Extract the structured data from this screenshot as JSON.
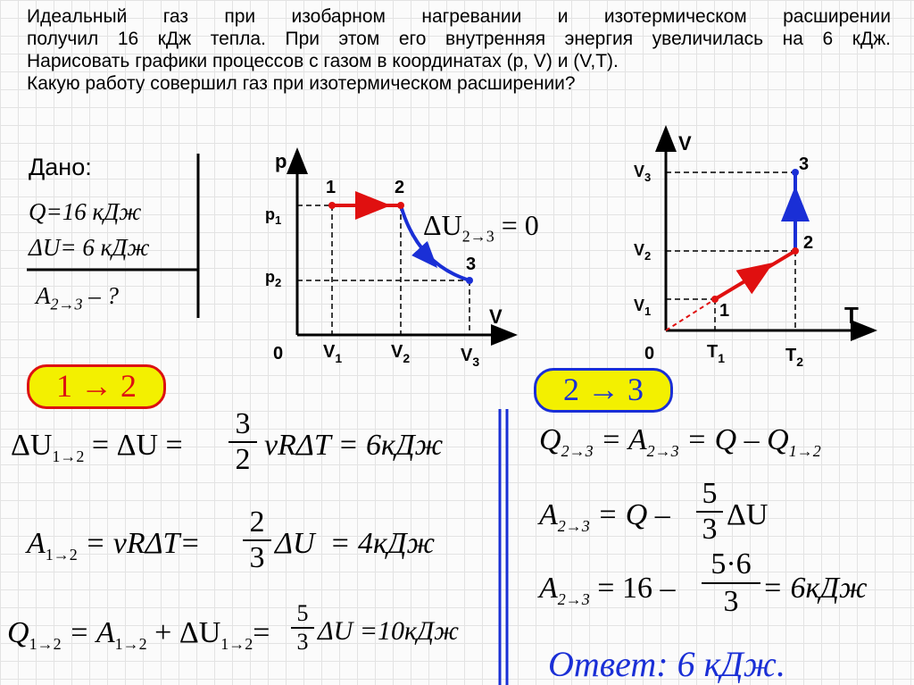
{
  "problem": {
    "lines": [
      "Идеальный газ при изобарном нагревании и изотермическом расширении",
      "получил 16 кДж тепла. При этом его внутренняя энергия увеличилась на 6 кДж.",
      "Нарисовать графики процессов с газом в координатах (p, V) и (V,T).",
      "Какую работу совершил газ при изотермическом расширении?"
    ]
  },
  "given": {
    "title": "Дано:",
    "q": "Q=16 кДж",
    "du": "ΔU= 6 кДж",
    "find": "A",
    "find_sub": "2→3",
    "find_q": " – ?"
  },
  "pv_graph": {
    "axis_p": "p",
    "axis_v": "V",
    "origin": "0",
    "p1": "p",
    "p1_sub": "1",
    "p2": "p",
    "p2_sub": "2",
    "v1": "V",
    "v1_sub": "1",
    "v2": "V",
    "v2_sub": "2",
    "v3": "V",
    "v3_sub": "3",
    "point1": "1",
    "point2": "2",
    "point3": "3",
    "du23_lhs": "ΔU",
    "du23_sub": "2→3",
    "du23_rhs": " = 0"
  },
  "vt_graph": {
    "axis_v": "V",
    "axis_t": "T",
    "origin": "0",
    "v1": "V",
    "v1_sub": "1",
    "v2": "V",
    "v2_sub": "2",
    "v3": "V",
    "v3_sub": "3",
    "t1": "T",
    "t1_sub": "1",
    "t2": "T",
    "t2_sub": "2",
    "point1": "1",
    "point2": "2",
    "point3": "3"
  },
  "colors": {
    "red": "#e01010",
    "blue": "#1a2fd6",
    "pill_bg": "#f3f000"
  },
  "step12": {
    "label": "1 → 2",
    "eq1_a": "ΔU",
    "eq1_a_sub": "1→2",
    "eq1_b": " = ΔU = ",
    "eq1_num": "3",
    "eq1_den": "2",
    "eq1_c": "νRΔT = 6кДж",
    "eq2_a": "A",
    "eq2_a_sub": "1→2",
    "eq2_b": " = νRΔT= ",
    "eq2_num": "2",
    "eq2_den": "3",
    "eq2_c": "ΔU  = 4кДж",
    "eq3_a": "Q",
    "eq3_a_sub": "1→2",
    "eq3_b": " = A",
    "eq3_b_sub": "1→2",
    "eq3_c": " + ΔU",
    "eq3_c_sub": "1→2",
    "eq3_d": "= ",
    "eq3_num": "5",
    "eq3_den": "3",
    "eq3_e": "ΔU =10кДж"
  },
  "step23": {
    "label": "2 → 3",
    "eq1_a": "Q",
    "eq1_a_sub": "2→3",
    "eq1_b": " = A",
    "eq1_b_sub": "2→3",
    "eq1_c": " = Q – Q",
    "eq1_c_sub": "1→2",
    "eq2_a": "A",
    "eq2_a_sub": "2→3",
    "eq2_b": " = Q – ",
    "eq2_num": "5",
    "eq2_den": "3",
    "eq2_c": "ΔU",
    "eq3_a": "A",
    "eq3_a_sub": "2→3",
    "eq3_b": " = 16 – ",
    "eq3_num": "5·6",
    "eq3_den": "3",
    "eq3_c": " = 6кДж"
  },
  "answer": "Ответ: 6 кДж."
}
